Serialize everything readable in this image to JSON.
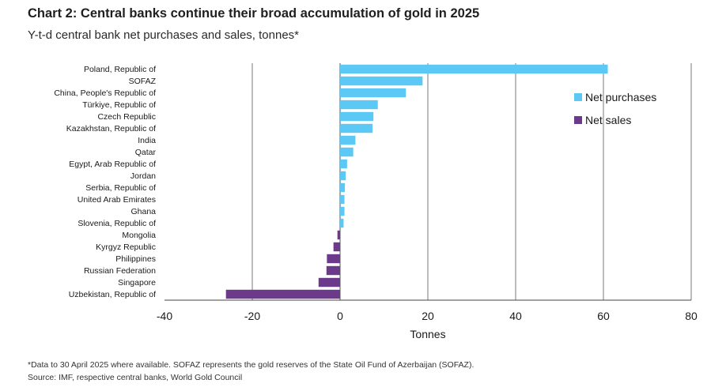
{
  "title": "Chart 2: Central banks continue their broad accumulation of gold in 2025",
  "subtitle": "Y-t-d central bank net purchases and sales, tonnes*",
  "footnote": "*Data to 30 April 2025 where available. SOFAZ represents the gold reserves of the State Oil Fund of Azerbaijan (SOFAZ).",
  "source": "Source: IMF, respective central banks, World Gold Council",
  "colors": {
    "purchases": "#5bc8f5",
    "sales": "#6b3a8a",
    "grid": "#7a7a7a"
  },
  "chart_data": {
    "type": "bar",
    "orientation": "horizontal",
    "categories": [
      "Poland, Republic of",
      "SOFAZ",
      "China, People's Republic of",
      "Türkiye, Republic of",
      "Czech Republic",
      "Kazakhstan, Republic of",
      "India",
      "Qatar",
      "Egypt, Arab Republic of",
      "Jordan",
      "Serbia, Republic of",
      "United Arab Emirates",
      "Ghana",
      "Slovenia, Republic of",
      "Mongolia",
      "Kyrgyz Republic",
      "Philippines",
      "Russian Federation",
      "Singapore",
      "Uzbekistan, Republic of"
    ],
    "values": [
      61,
      18.8,
      15,
      8.6,
      7.6,
      7.4,
      3.5,
      3,
      1.6,
      1.3,
      1.1,
      1,
      1,
      0.8,
      -0.6,
      -1.5,
      -3,
      -3.1,
      -4.9,
      -26
    ],
    "series": [
      {
        "name": "Net purchases",
        "color": "#5bc8f5"
      },
      {
        "name": "Net sales",
        "color": "#6b3a8a"
      }
    ],
    "xlabel": "Tonnes",
    "xlim": [
      -40,
      80
    ],
    "xticks": [
      -40,
      -20,
      0,
      20,
      40,
      60,
      80
    ],
    "grid": true,
    "legend": "top-right"
  }
}
